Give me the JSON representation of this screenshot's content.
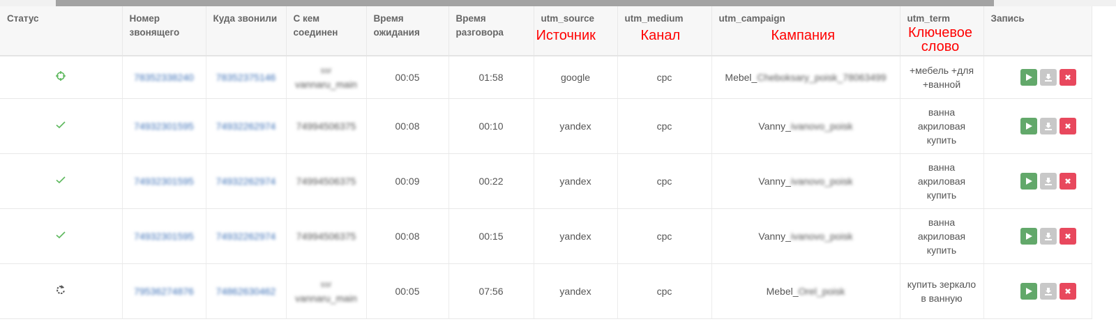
{
  "scrollbar": {
    "position_fraction": 0.05
  },
  "headers": [
    "Статус",
    "Номер звонящего",
    "Куда звонили",
    "С кем соединен",
    "Время ожидания",
    "Время разговора",
    "utm_source",
    "utm_medium",
    "utm_campaign",
    "utm_term",
    "Запись"
  ],
  "annotations": {
    "source": "Источник",
    "medium": "Канал",
    "campaign": "Кампания",
    "term": "Ключевое слово"
  },
  "colors": {
    "annotation": "#ff0000",
    "play": "#62a86a",
    "download": "#c8c8c8",
    "delete": "#e8485d",
    "status_ok": "#5cb85c"
  },
  "rows": [
    {
      "status": "crosshair-icon",
      "caller": "78352338240",
      "called": "78352375146",
      "connected": "vannaru_main",
      "connected_prefix": "ssr",
      "wait": "00:05",
      "talk": "01:58",
      "source": "google",
      "medium": "cpc",
      "campaign_prefix": "Mebel_",
      "campaign_rest": "Cheboksary_poisk_78063499",
      "term": "+мебель +для +ванной"
    },
    {
      "status": "check-icon",
      "caller": "74932301595",
      "called": "74932262974",
      "connected": "74994506375",
      "connected_prefix": "",
      "wait": "00:08",
      "talk": "00:10",
      "source": "yandex",
      "medium": "cpc",
      "campaign_prefix": "Vanny_",
      "campaign_rest": "ivanovo_poisk",
      "term": "ванна акриловая купить"
    },
    {
      "status": "check-icon",
      "caller": "74932301595",
      "called": "74932262974",
      "connected": "74994506375",
      "connected_prefix": "",
      "wait": "00:09",
      "talk": "00:22",
      "source": "yandex",
      "medium": "cpc",
      "campaign_prefix": "Vanny_",
      "campaign_rest": "ivanovo_poisk",
      "term": "ванна акриловая купить"
    },
    {
      "status": "check-icon",
      "caller": "74932301595",
      "called": "74932262974",
      "connected": "74994506375",
      "connected_prefix": "",
      "wait": "00:08",
      "talk": "00:15",
      "source": "yandex",
      "medium": "cpc",
      "campaign_prefix": "Vanny_",
      "campaign_rest": "ivanovo_poisk",
      "term": "ванна акриловая купить"
    },
    {
      "status": "refresh-icon",
      "caller": "79536274876",
      "called": "74862630462",
      "connected": "vannaru_main",
      "connected_prefix": "ssr",
      "wait": "00:05",
      "talk": "07:56",
      "source": "yandex",
      "medium": "cpc",
      "campaign_prefix": "Mebel_",
      "campaign_rest": "Orel_poisk",
      "term": "купить зеркало в ванную"
    }
  ]
}
